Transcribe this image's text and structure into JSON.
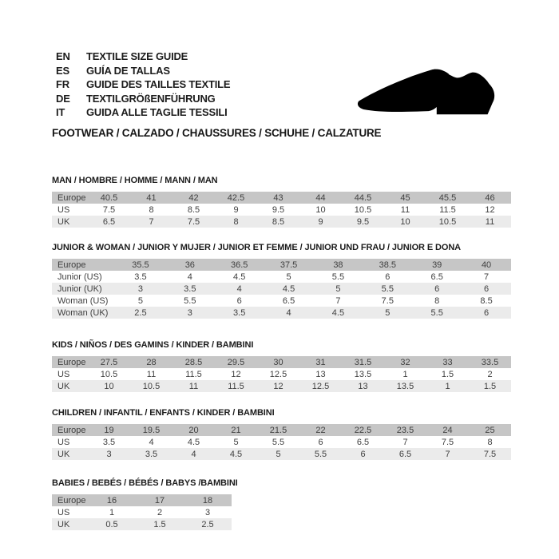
{
  "header": {
    "languages": [
      {
        "code": "EN",
        "label": "TEXTILE SIZE GUIDE"
      },
      {
        "code": "ES",
        "label": "GUÍA DE TALLAS"
      },
      {
        "code": "FR",
        "label": "GUIDE DES TAILLES TEXTILE"
      },
      {
        "code": "DE",
        "label": "TEXTILGRÖßENFÜHRUNG"
      },
      {
        "code": "IT",
        "label": "GUIDA ALLE TAGLIE TESSILI"
      }
    ],
    "category_line": "FOOTWEAR / CALZADO / CHAUSSURES / SCHUHE / CALZATURE",
    "icon": "dress-shoe-silhouette-icon"
  },
  "colors": {
    "header_row_bg": "#c6c6c6",
    "alt_row_bg": "#ebebeb",
    "table_text": "#404040",
    "title_text": "#1b1b1b",
    "shoe": "#000000"
  },
  "tables": [
    {
      "title": "MAN / HOMBRE / HOMME / MANN / MAN",
      "rows": [
        {
          "label": "Europe",
          "values": [
            "40.5",
            "41",
            "42",
            "42.5",
            "43",
            "44",
            "44.5",
            "45",
            "45.5",
            "46"
          ]
        },
        {
          "label": "US",
          "values": [
            "7.5",
            "8",
            "8.5",
            "9",
            "9.5",
            "10",
            "10.5",
            "11",
            "11.5",
            "12"
          ]
        },
        {
          "label": "UK",
          "values": [
            "6.5",
            "7",
            "7.5",
            "8",
            "8.5",
            "9",
            "9.5",
            "10",
            "10.5",
            "11"
          ]
        }
      ]
    },
    {
      "title": "JUNIOR & WOMAN / JUNIOR Y MUJER / JUNIOR ET FEMME / JUNIOR UND FRAU / JUNIOR E DONA",
      "rows": [
        {
          "label": "Europe",
          "values": [
            "35.5",
            "36",
            "36.5",
            "37.5",
            "38",
            "38.5",
            "39",
            "40"
          ]
        },
        {
          "label": "Junior (US)",
          "values": [
            "3.5",
            "4",
            "4.5",
            "5",
            "5.5",
            "6",
            "6.5",
            "7"
          ]
        },
        {
          "label": "Junior (UK)",
          "values": [
            "3",
            "3.5",
            "4",
            "4.5",
            "5",
            "5.5",
            "6",
            "6"
          ]
        },
        {
          "label": "Woman (US)",
          "values": [
            "5",
            "5.5",
            "6",
            "6.5",
            "7",
            "7.5",
            "8",
            "8.5"
          ]
        },
        {
          "label": "Woman (UK)",
          "values": [
            "2.5",
            "3",
            "3.5",
            "4",
            "4.5",
            "5",
            "5.5",
            "6"
          ]
        }
      ]
    },
    {
      "title": "KIDS / NIÑOS / DES GAMINS / KINDER / BAMBINI",
      "rows": [
        {
          "label": "Europe",
          "values": [
            "27.5",
            "28",
            "28.5",
            "29.5",
            "30",
            "31",
            "31.5",
            "32",
            "33",
            "33.5"
          ]
        },
        {
          "label": "US",
          "values": [
            "10.5",
            "11",
            "11.5",
            "12",
            "12.5",
            "13",
            "13.5",
            "1",
            "1.5",
            "2"
          ]
        },
        {
          "label": "UK",
          "values": [
            "10",
            "10.5",
            "11",
            "11.5",
            "12",
            "12.5",
            "13",
            "13.5",
            "1",
            "1.5"
          ]
        }
      ]
    },
    {
      "title": "CHILDREN / INFANTIL / ENFANTS / KINDER / BAMBINI",
      "rows": [
        {
          "label": "Europe",
          "values": [
            "19",
            "19.5",
            "20",
            "21",
            "21.5",
            "22",
            "22.5",
            "23.5",
            "24",
            "25"
          ]
        },
        {
          "label": "US",
          "values": [
            "3.5",
            "4",
            "4.5",
            "5",
            "5.5",
            "6",
            "6.5",
            "7",
            "7.5",
            "8"
          ]
        },
        {
          "label": "UK",
          "values": [
            "3",
            "3.5",
            "4",
            "4.5",
            "5",
            "5.5",
            "6",
            "6.5",
            "7",
            "7.5"
          ]
        }
      ]
    },
    {
      "title": "BABIES / BEBÉS / BÉBÉS / BABYS /BAMBINI",
      "rows": [
        {
          "label": "Europe",
          "values": [
            "16",
            "17",
            "18"
          ]
        },
        {
          "label": "US",
          "values": [
            "1",
            "2",
            "3"
          ]
        },
        {
          "label": "UK",
          "values": [
            "0.5",
            "1.5",
            "2.5"
          ]
        }
      ]
    }
  ]
}
